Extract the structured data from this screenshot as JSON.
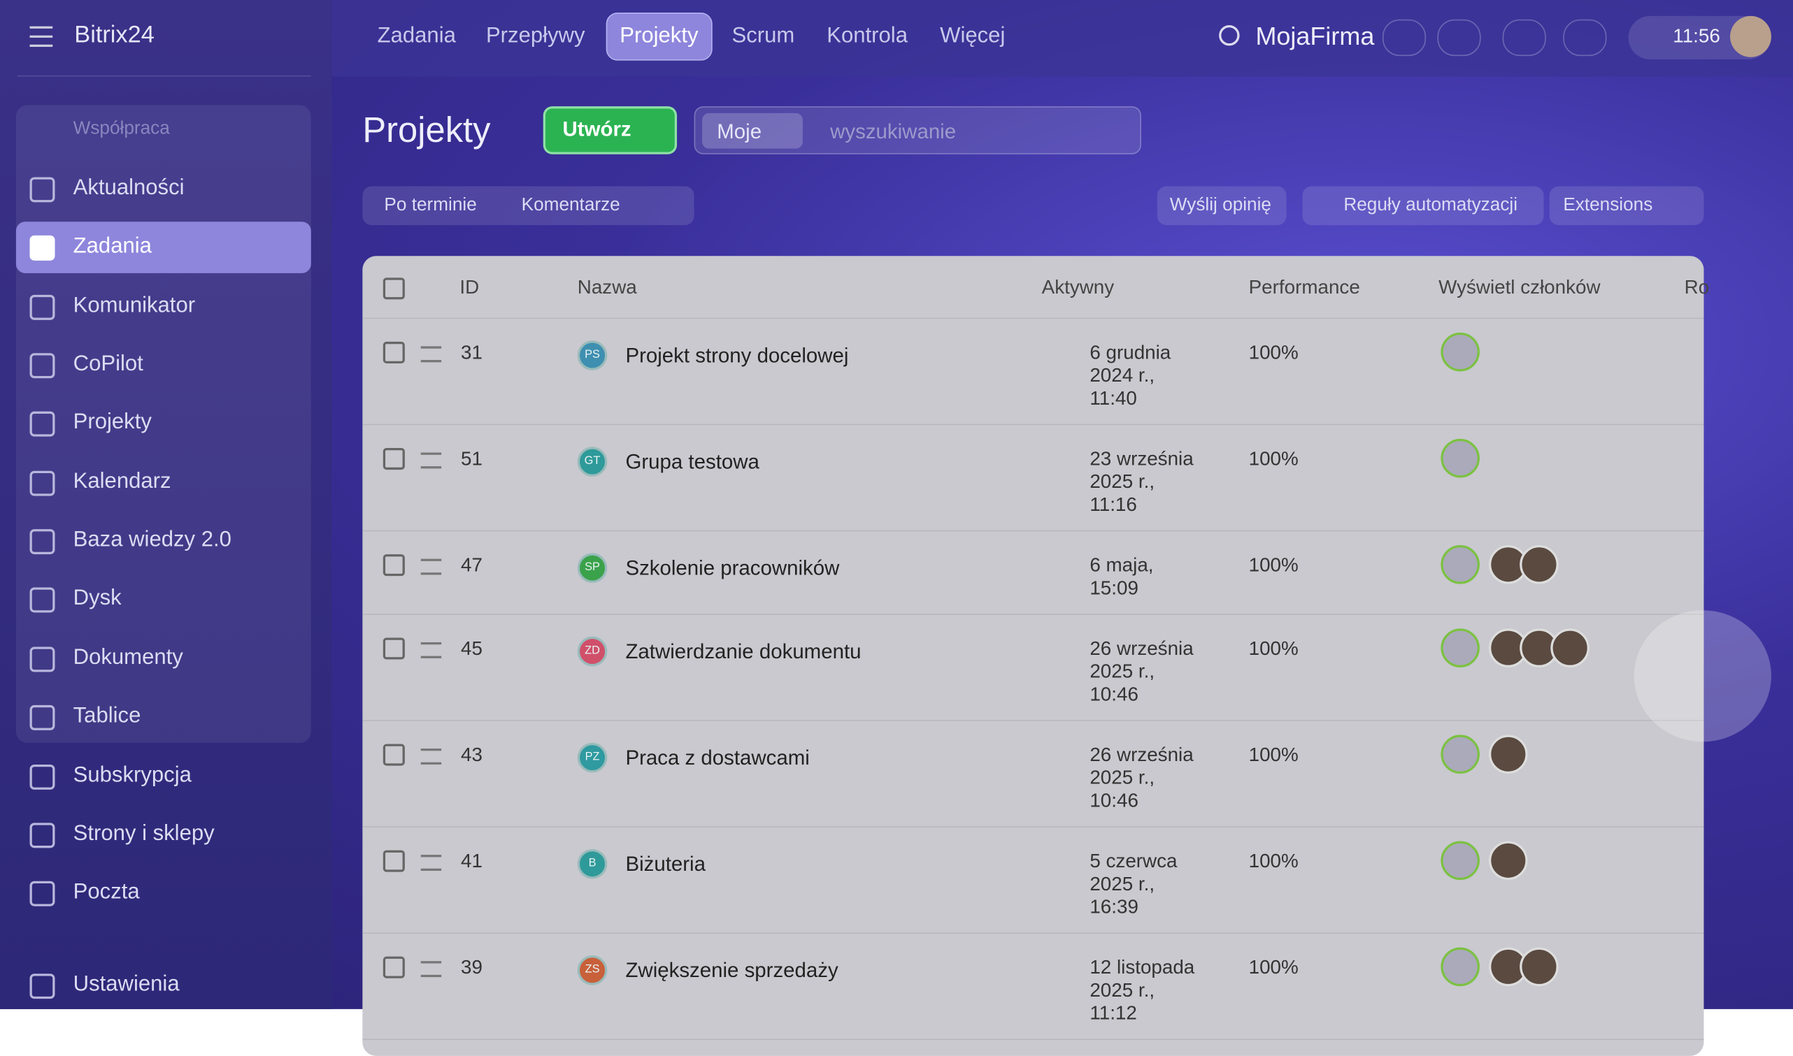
{
  "sidebar": {
    "logo": "Bitrix24",
    "group": "Współpraca",
    "items": [
      "Aktualności",
      "Zadania",
      "Komunikator",
      "CoPilot",
      "Projekty",
      "Kalendarz",
      "Baza wiedzy 2.0",
      "Dysk",
      "Dokumenty",
      "Tablice",
      "Subskrypcja",
      "Strony i sklepy",
      "Poczta",
      "Ustawienia"
    ]
  },
  "topnav": {
    "tabs": [
      "Zadania",
      "Przepływy",
      "Projekty",
      "Scrum",
      "Kontrola",
      "Więcej"
    ],
    "company": "MojaFirma",
    "time": "11:56"
  },
  "header": {
    "title": "Projekty",
    "create": "Utwórz",
    "filter_tag": "Moje",
    "search_placeholder": "wyszukiwanie"
  },
  "toolbar": {
    "left": [
      "Po terminie",
      "Komentarze"
    ],
    "right": [
      "Wyślij opinię",
      "Reguły automatyzacji",
      "Extensions"
    ]
  },
  "table": {
    "columns": [
      "ID",
      "Nazwa",
      "Aktywny",
      "Performance",
      "Wyświetl członków",
      "Ro"
    ],
    "rows": [
      {
        "id": "31",
        "initials": "PS",
        "color": "#3f8fb0",
        "name": "Projekt strony docelowej",
        "active": [
          "6 grudnia",
          "2024 r.,",
          "11:40"
        ],
        "performance": "100%",
        "members": 1
      },
      {
        "id": "51",
        "initials": "GT",
        "color": "#2f9a9a",
        "name": "Grupa testowa",
        "active": [
          "23 września",
          "2025 r.,",
          "11:16"
        ],
        "performance": "100%",
        "members": 1
      },
      {
        "id": "47",
        "initials": "SP",
        "color": "#3aa24a",
        "name": "Szkolenie pracowników",
        "active": [
          "6 maja,",
          "15:09"
        ],
        "performance": "100%",
        "members": 3
      },
      {
        "id": "45",
        "initials": "ZD",
        "color": "#d0506a",
        "name": "Zatwierdzanie dokumentu",
        "active": [
          "26 września",
          "2025 r.,",
          "10:46"
        ],
        "performance": "100%",
        "members": 4
      },
      {
        "id": "43",
        "initials": "PZ",
        "color": "#2f9aa0",
        "name": "Praca z dostawcami",
        "active": [
          "26 września",
          "2025 r.,",
          "10:46"
        ],
        "performance": "100%",
        "members": 2
      },
      {
        "id": "41",
        "initials": "B",
        "color": "#2f9a9a",
        "name": "Biżuteria",
        "active": [
          "5 czerwca",
          "2025 r.,",
          "16:39"
        ],
        "performance": "100%",
        "members": 2
      },
      {
        "id": "39",
        "initials": "ZS",
        "color": "#c8603a",
        "name": "Zwiększenie sprzedaży",
        "active": [
          "12 listopada",
          "2025 r.,",
          "11:12"
        ],
        "performance": "100%",
        "members": 3
      }
    ]
  }
}
